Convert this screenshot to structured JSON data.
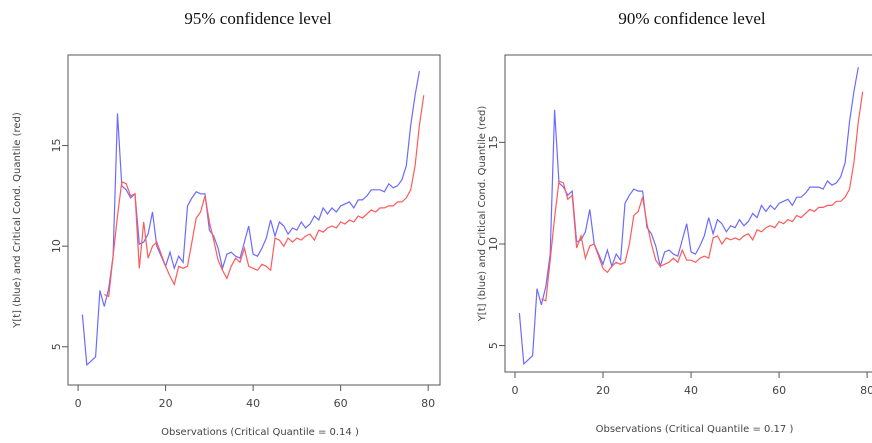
{
  "chart_data": [
    {
      "type": "line",
      "title": "95% confidence level",
      "x_label": "Observations  (Critical Quantile =  0.14 )",
      "y_label": "Y[t] (blue) and Critical Cond. Quantile (red)",
      "x": [
        1,
        2,
        3,
        4,
        5,
        6,
        7,
        8,
        9,
        10,
        11,
        12,
        13,
        14,
        15,
        16,
        17,
        18,
        19,
        20,
        21,
        22,
        23,
        24,
        25,
        26,
        27,
        28,
        29,
        30,
        31,
        32,
        33,
        34,
        35,
        36,
        37,
        38,
        39,
        40,
        41,
        42,
        43,
        44,
        45,
        46,
        47,
        48,
        49,
        50,
        51,
        52,
        53,
        54,
        55,
        56,
        57,
        58,
        59,
        60,
        61,
        62,
        63,
        64,
        65,
        66,
        67,
        68,
        69,
        70,
        71,
        72,
        73,
        74,
        75,
        76,
        77,
        78,
        79
      ],
      "series": [
        {
          "color": "#6b6bff",
          "values": [
            6.6,
            4.1,
            4.3,
            4.5,
            7.8,
            7.0,
            7.9,
            9.5,
            16.6,
            13.0,
            12.8,
            12.4,
            12.6,
            10.1,
            10.2,
            10.6,
            11.7,
            10.0,
            9.5,
            9.0,
            9.7,
            8.9,
            9.5,
            9.2,
            12.0,
            12.4,
            12.7,
            12.6,
            12.6,
            10.8,
            10.5,
            9.9,
            8.9,
            9.6,
            9.7,
            9.5,
            9.4,
            10.2,
            11.0,
            9.6,
            9.5,
            9.9,
            10.4,
            11.3,
            10.5,
            11.2,
            11.0,
            10.6,
            10.9,
            10.8,
            11.2,
            10.9,
            11.1,
            11.5,
            11.3,
            11.9,
            11.6,
            11.9,
            11.7,
            12.0,
            12.1,
            12.2,
            11.9,
            12.3,
            12.3,
            12.5,
            12.8,
            12.8,
            12.8,
            12.7,
            13.1,
            12.9,
            13.0,
            13.3,
            14.0,
            16.0,
            17.5,
            18.7,
            null
          ]
        },
        {
          "color": "#ff5a5a",
          "values": [
            null,
            null,
            null,
            null,
            null,
            7.6,
            7.5,
            9.5,
            11.5,
            13.2,
            13.1,
            12.5,
            12.6,
            8.9,
            11.2,
            9.4,
            10.0,
            10.2,
            9.6,
            9.0,
            8.5,
            8.1,
            9.0,
            8.9,
            9.0,
            10.2,
            11.4,
            11.7,
            12.5,
            11.2,
            10.3,
            9.3,
            8.8,
            8.4,
            9.0,
            9.4,
            9.2,
            9.9,
            9.0,
            8.9,
            8.8,
            9.1,
            9.0,
            8.8,
            10.4,
            10.3,
            10.0,
            10.4,
            10.2,
            10.4,
            10.3,
            10.5,
            10.6,
            10.3,
            10.8,
            10.7,
            10.9,
            11.0,
            10.9,
            11.2,
            11.1,
            11.3,
            11.2,
            11.5,
            11.4,
            11.6,
            11.8,
            11.7,
            11.9,
            11.9,
            12.0,
            12.0,
            12.2,
            12.2,
            12.4,
            12.8,
            14.0,
            16.0,
            17.5
          ]
        }
      ],
      "xlim": [
        -2.3,
        82.7
      ],
      "ylim": [
        3.1,
        19.5
      ],
      "xticks": [
        0,
        20,
        40,
        60,
        80
      ],
      "yticks": [
        5,
        10,
        15
      ]
    },
    {
      "type": "line",
      "title": "90% confidence level",
      "x_label": "Observations  (Critical Quantile =  0.17 )",
      "y_label": "Y[t] (blue) and Critical Cond. Quantile (red)",
      "x": [
        1,
        2,
        3,
        4,
        5,
        6,
        7,
        8,
        9,
        10,
        11,
        12,
        13,
        14,
        15,
        16,
        17,
        18,
        19,
        20,
        21,
        22,
        23,
        24,
        25,
        26,
        27,
        28,
        29,
        30,
        31,
        32,
        33,
        34,
        35,
        36,
        37,
        38,
        39,
        40,
        41,
        42,
        43,
        44,
        45,
        46,
        47,
        48,
        49,
        50,
        51,
        52,
        53,
        54,
        55,
        56,
        57,
        58,
        59,
        60,
        61,
        62,
        63,
        64,
        65,
        66,
        67,
        68,
        69,
        70,
        71,
        72,
        73,
        74,
        75,
        76,
        77,
        78,
        79
      ],
      "series": [
        {
          "color": "#6b6bff",
          "values": [
            6.6,
            4.1,
            4.3,
            4.5,
            7.8,
            7.0,
            7.9,
            9.5,
            16.6,
            13.0,
            12.8,
            12.4,
            12.6,
            10.1,
            10.2,
            10.6,
            11.7,
            10.0,
            9.5,
            9.0,
            9.7,
            8.9,
            9.5,
            9.2,
            12.0,
            12.4,
            12.7,
            12.6,
            12.6,
            10.8,
            10.5,
            9.9,
            8.9,
            9.6,
            9.7,
            9.5,
            9.4,
            10.2,
            11.0,
            9.6,
            9.5,
            9.9,
            10.4,
            11.3,
            10.5,
            11.2,
            11.0,
            10.6,
            10.9,
            10.8,
            11.2,
            10.9,
            11.1,
            11.5,
            11.3,
            11.9,
            11.6,
            11.9,
            11.7,
            12.0,
            12.1,
            12.2,
            11.9,
            12.3,
            12.3,
            12.5,
            12.8,
            12.8,
            12.8,
            12.7,
            13.1,
            12.9,
            13.0,
            13.3,
            14.0,
            16.0,
            17.5,
            18.7,
            null
          ]
        },
        {
          "color": "#ff5a5a",
          "values": [
            null,
            null,
            null,
            null,
            null,
            7.3,
            7.2,
            9.2,
            11.3,
            13.1,
            13.0,
            12.2,
            12.4,
            9.8,
            10.4,
            9.3,
            9.9,
            10.0,
            9.4,
            8.8,
            8.6,
            8.9,
            9.1,
            9.0,
            9.1,
            10.0,
            11.4,
            11.6,
            12.3,
            11.0,
            10.0,
            9.2,
            8.9,
            9.0,
            9.1,
            9.3,
            9.1,
            9.7,
            9.2,
            9.2,
            9.1,
            9.3,
            9.4,
            9.3,
            10.3,
            10.4,
            10.0,
            10.3,
            10.2,
            10.3,
            10.2,
            10.4,
            10.5,
            10.2,
            10.7,
            10.6,
            10.8,
            10.9,
            10.8,
            11.1,
            11.0,
            11.2,
            11.1,
            11.4,
            11.3,
            11.5,
            11.7,
            11.6,
            11.8,
            11.8,
            11.9,
            11.9,
            12.1,
            12.1,
            12.3,
            12.7,
            14.0,
            16.0,
            17.5
          ]
        }
      ],
      "xlim": [
        -2.27,
        82.7
      ],
      "ylim": [
        3.7,
        19.3
      ],
      "xticks": [
        0,
        20,
        40,
        60,
        80
      ],
      "yticks": [
        5,
        10,
        15
      ]
    }
  ]
}
